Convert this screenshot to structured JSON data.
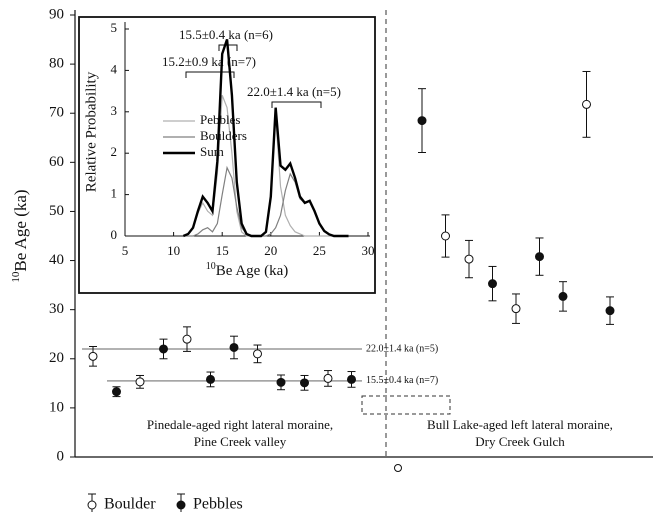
{
  "chart_data": [
    {
      "type": "scatter",
      "y_label_sup": "10",
      "y_label": "Be Age (ka)",
      "ylim": [
        0,
        90
      ],
      "yticks": [
        0,
        10,
        20,
        30,
        40,
        50,
        60,
        70,
        80,
        90
      ],
      "categories": [
        null,
        null,
        null,
        null,
        null,
        null,
        null,
        null,
        null,
        null,
        null,
        null,
        null,
        null,
        null,
        null,
        null,
        null,
        null,
        null,
        null,
        null,
        null
      ],
      "series": [
        {
          "name": "Boulder",
          "marker": "open",
          "color": "#111",
          "values": [
            20.5,
            null,
            15.3,
            null,
            24.0,
            null,
            null,
            21.0,
            null,
            null,
            16.0,
            null,
            null,
            null,
            null,
            45.0,
            40.3,
            null,
            30.2,
            null,
            null,
            71.8,
            null
          ],
          "errors": [
            2.0,
            null,
            1.3,
            null,
            2.5,
            null,
            null,
            1.8,
            null,
            null,
            1.6,
            null,
            null,
            null,
            null,
            4.3,
            3.8,
            null,
            3.0,
            null,
            null,
            6.7,
            null
          ]
        },
        {
          "name": "Pebbles",
          "marker": "filled",
          "color": "#111",
          "values": [
            null,
            13.3,
            null,
            22.0,
            null,
            15.8,
            22.3,
            null,
            15.2,
            15.1,
            null,
            15.8,
            null,
            null,
            68.5,
            null,
            null,
            35.3,
            null,
            40.8,
            32.7,
            null,
            29.8
          ],
          "errors": [
            null,
            1.0,
            null,
            2.0,
            null,
            1.5,
            2.3,
            null,
            1.5,
            1.5,
            null,
            1.6,
            null,
            null,
            6.5,
            null,
            null,
            3.5,
            null,
            3.8,
            3.0,
            null,
            2.8
          ]
        }
      ],
      "reference_lines": [
        {
          "value": 22.0,
          "label": "22.0±1.4 ka (n=5)",
          "color": "#999"
        },
        {
          "value": 15.5,
          "label": "15.5±0.4 ka (n=7)",
          "color": "#999"
        }
      ],
      "annotations": [
        "Pinedale-aged right lateral moraine,",
        "Pine Creek valley",
        "Bull Lake-aged left lateral moraine,",
        "Dry Creek Gulch"
      ]
    },
    {
      "type": "line",
      "x_label_sup": "10",
      "x_label": "Be Age (ka)",
      "y_label": "Relative Probability",
      "xlim": [
        5,
        30
      ],
      "xticks": [
        5,
        10,
        15,
        20,
        25,
        30
      ],
      "ylim": [
        0,
        5
      ],
      "yticks": [
        0,
        1,
        2,
        3,
        4,
        5
      ],
      "x": [
        11,
        11.5,
        12,
        12.5,
        13,
        13.5,
        14,
        14.5,
        15,
        15.5,
        16,
        16.5,
        17,
        17.5,
        18,
        18.5,
        19,
        19.5,
        20,
        20.5,
        21,
        21.5,
        22,
        22.5,
        23,
        23.5,
        24,
        24.5,
        25,
        25.5,
        26,
        26.5,
        27,
        27.5,
        28
      ],
      "series": [
        {
          "name": "Pebbles",
          "color": "#b0b0b0",
          "width": 1.2,
          "values": [
            0,
            0.05,
            0.2,
            0.55,
            0.8,
            0.6,
            0.5,
            1.5,
            3.4,
            3.1,
            2.0,
            0.6,
            0.1,
            0,
            0,
            0,
            0,
            0.1,
            0.9,
            2.9,
            1.2,
            0.5,
            0.25,
            0.1,
            0.05,
            0,
            0,
            0,
            0,
            0,
            0,
            0,
            0,
            0,
            0
          ]
        },
        {
          "name": "Boulders",
          "color": "#808080",
          "width": 1.2,
          "values": [
            0,
            0,
            0,
            0.05,
            0.15,
            0.2,
            0.1,
            0.3,
            1.0,
            1.65,
            1.4,
            0.7,
            0.2,
            0.05,
            0,
            0,
            0,
            0,
            0.05,
            0.2,
            0.5,
            1.1,
            1.5,
            1.3,
            0.9,
            0.8,
            0.85,
            0.6,
            0.3,
            0.12,
            0.04,
            0,
            0,
            0,
            0
          ]
        },
        {
          "name": "Sum",
          "color": "#000000",
          "width": 2.4,
          "values": [
            0,
            0.05,
            0.2,
            0.6,
            0.95,
            0.8,
            0.6,
            1.8,
            4.4,
            4.75,
            3.4,
            1.3,
            0.3,
            0.05,
            0,
            0,
            0,
            0.1,
            0.95,
            3.1,
            1.7,
            1.6,
            1.75,
            1.4,
            0.95,
            0.8,
            0.85,
            0.6,
            0.3,
            0.12,
            0.04,
            0,
            0,
            0,
            0
          ]
        }
      ],
      "annotations": [
        "15.5±0.4 ka (n=6)",
        "15.2±0.9 ka (n=7)",
        "22.0±1.4 ka (n=5)"
      ]
    }
  ]
}
